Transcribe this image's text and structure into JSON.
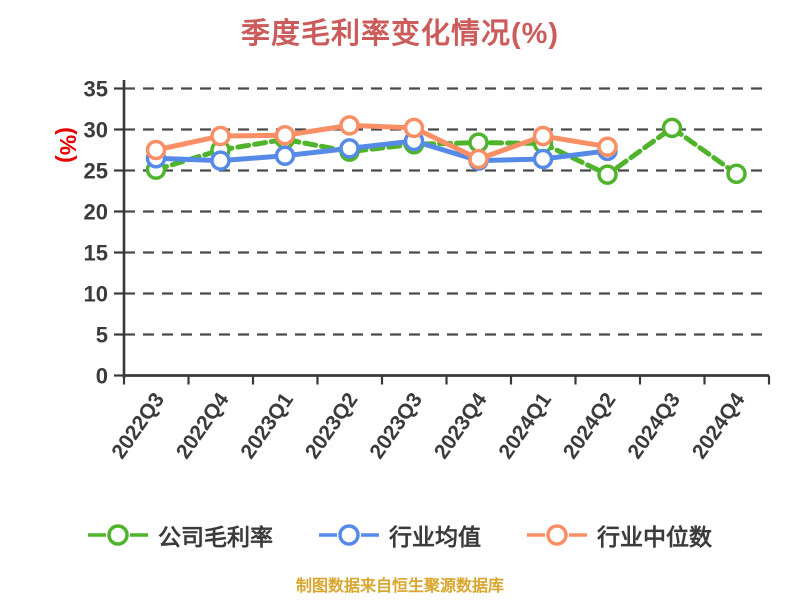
{
  "title": "季度毛利率变化情况(%)",
  "y_axis_label": "(%)",
  "footer": "制图数据来自恒生聚源数据库",
  "chart_data": {
    "type": "line",
    "title": "季度毛利率变化情况(%)",
    "ylabel": "(%)",
    "categories": [
      "2022Q3",
      "2022Q4",
      "2023Q1",
      "2023Q2",
      "2023Q3",
      "2023Q4",
      "2024Q1",
      "2024Q2",
      "2024Q3",
      "2024Q4"
    ],
    "series": [
      {
        "name": "公司毛利率",
        "color": "#4fb32b",
        "line_style": "dashed",
        "values": [
          25.1,
          27.5,
          28.8,
          27.3,
          28.2,
          28.4,
          28.3,
          24.5,
          30.2,
          24.6
        ]
      },
      {
        "name": "行业均值",
        "color": "#568ae8",
        "line_style": "solid",
        "values": [
          26.5,
          26.2,
          26.8,
          27.7,
          28.6,
          26.2,
          26.4,
          27.4,
          null,
          null
        ]
      },
      {
        "name": "行业中位数",
        "color": "#fa8e65",
        "line_style": "solid",
        "values": [
          27.5,
          29.2,
          29.3,
          30.5,
          30.2,
          26.4,
          29.2,
          27.9,
          null,
          null
        ]
      }
    ],
    "ylim": [
      0,
      35
    ],
    "yticks": [
      0,
      5,
      10,
      15,
      20,
      25,
      30,
      35
    ],
    "grid": "horizontal dashed",
    "legend_position": "bottom",
    "marker": "circle-white-fill",
    "colors": {
      "title": "#cc5c5c",
      "y_axis_label": "#e60000",
      "axis": "#383838",
      "gridline": "#4a4a4a",
      "tick_text": "#3b3b3b",
      "footer": "#d9a62e",
      "background": "#ffffff"
    }
  }
}
